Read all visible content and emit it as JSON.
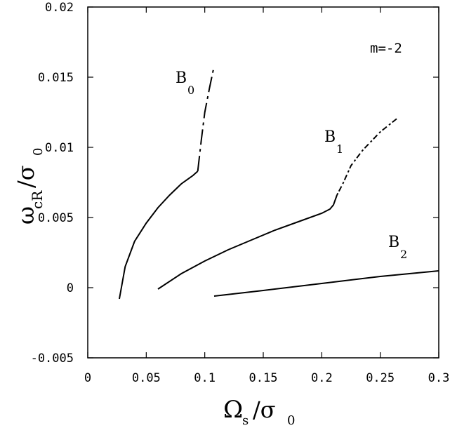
{
  "chart_data": {
    "type": "line",
    "annotation": "m=-2",
    "xlabel": {
      "symbol": "Ω",
      "sub": "s",
      "slash": "/σ",
      "sub2": "0"
    },
    "ylabel": {
      "symbol": "ω",
      "sub": "cR",
      "slash": "/σ",
      "sub2": "0"
    },
    "xlim": [
      0,
      0.3
    ],
    "ylim": [
      -0.005,
      0.02
    ],
    "xticks": [
      "0",
      "0.05",
      "0.1",
      "0.15",
      "0.2",
      "0.25",
      "0.3"
    ],
    "xtick_values": [
      0,
      0.05,
      0.1,
      0.15,
      0.2,
      0.25,
      0.3
    ],
    "yticks": [
      "-0.005",
      "0",
      "0.005",
      "0.01",
      "0.015",
      "0.02"
    ],
    "ytick_values": [
      -0.005,
      0,
      0.005,
      0.01,
      0.015,
      0.02
    ],
    "grid": false,
    "series": [
      {
        "name": "B",
        "sub": "0",
        "solid": [
          [
            0.027,
            -0.0008
          ],
          [
            0.032,
            0.0015
          ],
          [
            0.04,
            0.0033
          ],
          [
            0.05,
            0.0046
          ],
          [
            0.06,
            0.0057
          ],
          [
            0.07,
            0.0066
          ],
          [
            0.08,
            0.0074
          ],
          [
            0.09,
            0.008
          ],
          [
            0.094,
            0.0083
          ]
        ],
        "dashed": [
          [
            0.094,
            0.0083
          ],
          [
            0.097,
            0.0105
          ],
          [
            0.1,
            0.0125
          ],
          [
            0.104,
            0.0142
          ],
          [
            0.108,
            0.0158
          ]
        ]
      },
      {
        "name": "B",
        "sub": "1",
        "solid": [
          [
            0.06,
            -0.0001
          ],
          [
            0.08,
            0.001
          ],
          [
            0.1,
            0.0019
          ],
          [
            0.12,
            0.0027
          ],
          [
            0.14,
            0.0034
          ],
          [
            0.16,
            0.0041
          ],
          [
            0.18,
            0.0047
          ],
          [
            0.2,
            0.0053
          ],
          [
            0.207,
            0.0056
          ],
          [
            0.21,
            0.0059
          ],
          [
            0.213,
            0.0066
          ]
        ],
        "dashed": [
          [
            0.213,
            0.0066
          ],
          [
            0.218,
            0.0074
          ],
          [
            0.225,
            0.0087
          ],
          [
            0.235,
            0.0098
          ],
          [
            0.25,
            0.0111
          ],
          [
            0.265,
            0.0121
          ]
        ]
      },
      {
        "name": "B",
        "sub": "2",
        "solid": [
          [
            0.108,
            -0.0006
          ],
          [
            0.15,
            -0.0002
          ],
          [
            0.2,
            0.0003
          ],
          [
            0.25,
            0.0008
          ],
          [
            0.3,
            0.0012
          ]
        ],
        "dashed": []
      }
    ]
  }
}
